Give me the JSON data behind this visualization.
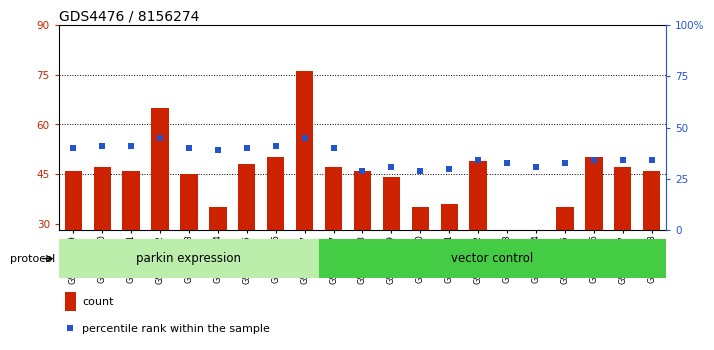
{
  "title": "GDS4476 / 8156274",
  "samples": [
    "GSM729739",
    "GSM729740",
    "GSM729741",
    "GSM729742",
    "GSM729743",
    "GSM729744",
    "GSM729745",
    "GSM729746",
    "GSM729747",
    "GSM729727",
    "GSM729728",
    "GSM729729",
    "GSM729730",
    "GSM729731",
    "GSM729732",
    "GSM729733",
    "GSM729734",
    "GSM729735",
    "GSM729736",
    "GSM729737",
    "GSM729738"
  ],
  "count_values": [
    46,
    47,
    46,
    65,
    45,
    35,
    48,
    50,
    76,
    47,
    46,
    44,
    35,
    36,
    49,
    27,
    27,
    35,
    50,
    47,
    46
  ],
  "percentile_values": [
    40,
    41,
    41,
    45,
    40,
    39,
    40,
    41,
    45,
    40,
    29,
    31,
    29,
    30,
    34,
    33,
    31,
    33,
    34,
    34,
    34
  ],
  "bar_color": "#cc2200",
  "dot_color": "#2255cc",
  "left_ylim": [
    28,
    90
  ],
  "left_yticks": [
    30,
    45,
    60,
    75,
    90
  ],
  "right_ylim": [
    0,
    100
  ],
  "right_yticks": [
    0,
    25,
    50,
    75,
    100
  ],
  "right_yticklabels": [
    "0",
    "25",
    "50",
    "75",
    "100%"
  ],
  "grid_values": [
    45,
    60,
    75
  ],
  "parkin_count": 9,
  "parkin_label": "parkin expression",
  "vector_label": "vector control",
  "parkin_color": "#bbeeaa",
  "vector_color": "#44cc44",
  "protocol_label": "protocol",
  "legend_count_label": "count",
  "legend_percentile_label": "percentile rank within the sample",
  "background_color": "#ffffff",
  "title_fontsize": 10,
  "tick_fontsize": 7.5
}
